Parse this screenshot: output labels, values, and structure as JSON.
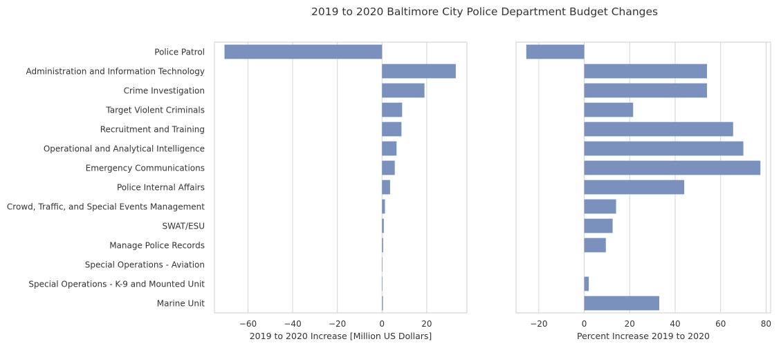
{
  "chart_data": [
    {
      "type": "bar",
      "orientation": "horizontal",
      "title": "2019 to 2020 Baltimore City Police Department Budget Changes",
      "categories": [
        "Police Patrol",
        "Administration and Information Technology",
        "Crime Investigation",
        "Target Violent Criminals",
        "Recruitment and Training",
        "Operational and Analytical Intelligence",
        "Emergency Communications",
        "Police Internal Affairs",
        "Crowd, Traffic, and Special Events Management",
        "SWAT/ESU",
        "Manage Police Records",
        "Special Operations - Aviation",
        "Special Operations - K-9 and Mounted Unit",
        "Marine Unit"
      ],
      "values": [
        -70.5,
        33,
        19,
        9,
        8.7,
        6.5,
        5.7,
        3.6,
        1.3,
        0.8,
        0.5,
        0.1,
        0.2,
        0.4
      ],
      "xlabel": "2019 to 2020 Increase [Million US Dollars]",
      "xlim": [
        -75,
        38
      ],
      "xticks": [
        -60,
        -40,
        -20,
        0,
        20
      ],
      "xtick_labels": [
        "−60",
        "−40",
        "−20",
        "0",
        "20"
      ],
      "grid": true,
      "color": "#7a90bd"
    },
    {
      "type": "bar",
      "orientation": "horizontal",
      "values": [
        -25.5,
        54,
        54,
        21.5,
        65.5,
        70,
        77.5,
        44,
        14,
        12.5,
        9.5,
        0,
        2,
        33
      ],
      "xlabel": "Percent Increase 2019 to 2020",
      "xlim": [
        -30,
        82
      ],
      "xticks": [
        -20,
        0,
        20,
        40,
        60,
        80
      ],
      "xtick_labels": [
        "−20",
        "0",
        "20",
        "40",
        "60",
        "80"
      ],
      "grid": true,
      "color": "#7a90bd"
    }
  ]
}
